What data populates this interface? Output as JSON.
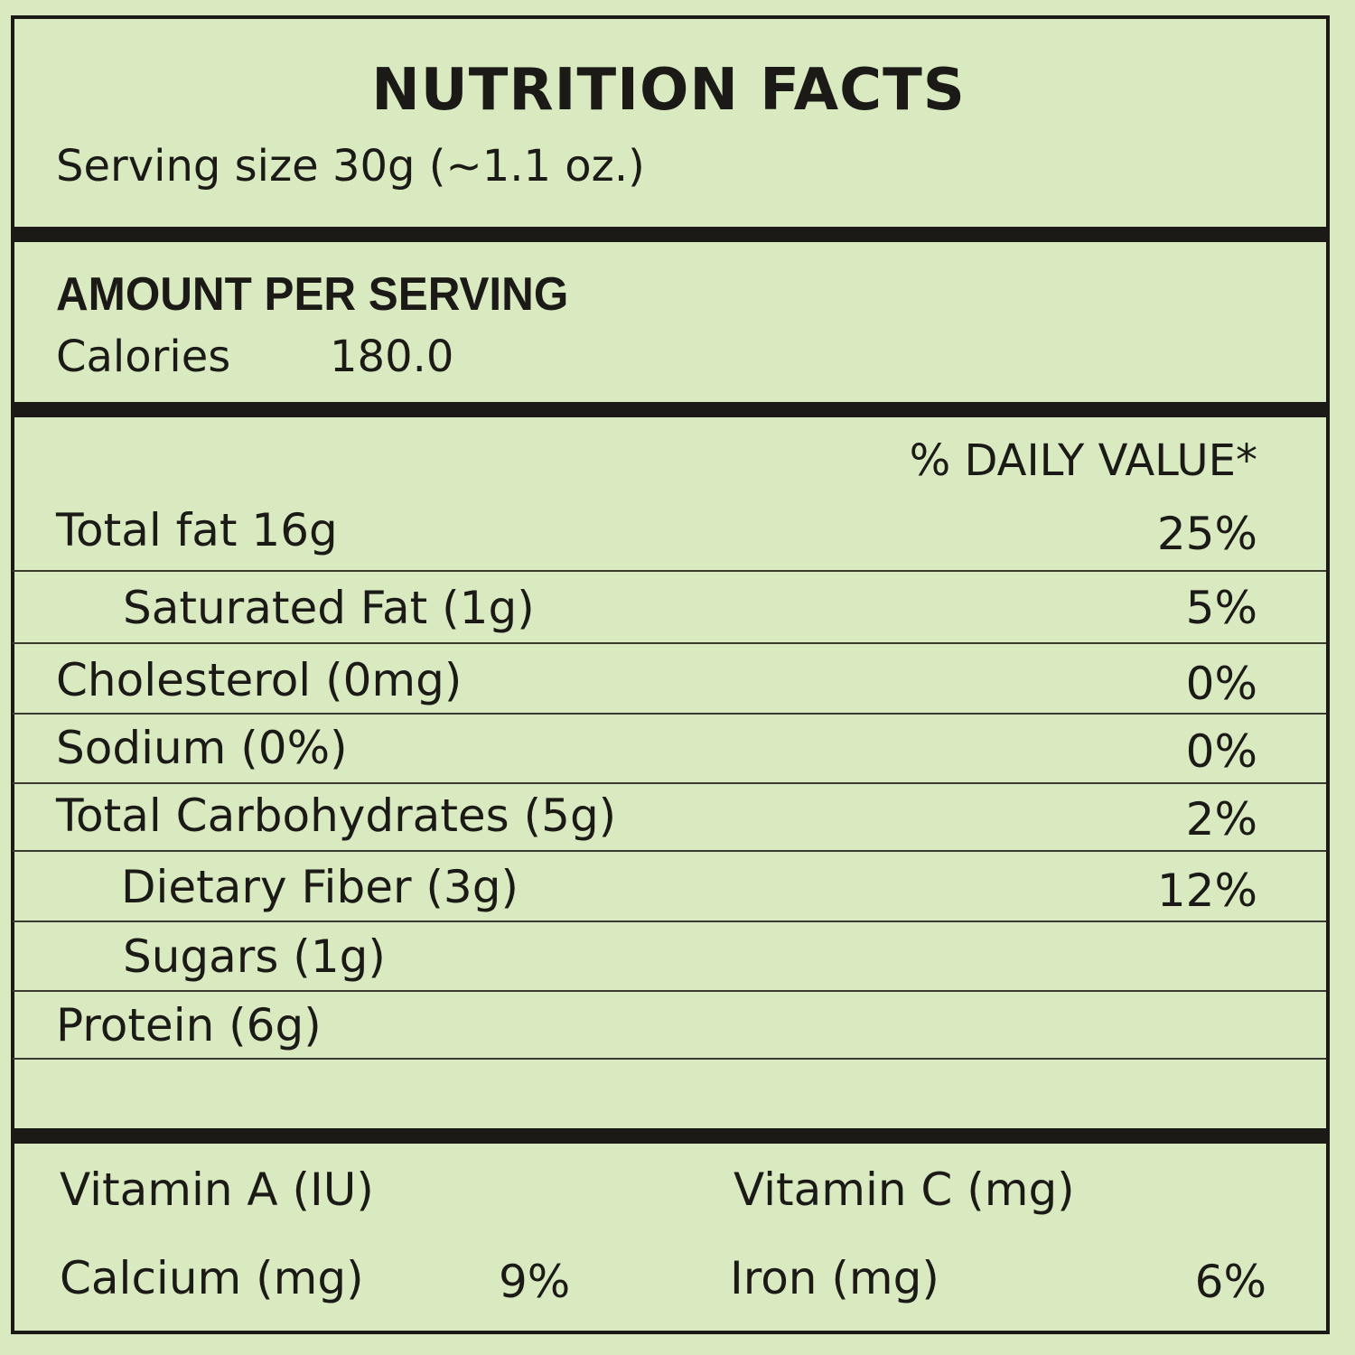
{
  "title": "NUTRITION FACTS",
  "serving_size": "Serving size 30g (~1.1 oz.)",
  "amount_per_serving": "AMOUNT PER SERVING",
  "calories": {
    "label": "Calories",
    "value": "180.0"
  },
  "daily_value_header": "% DAILY VALUE*",
  "nutrients": [
    {
      "label": "Total fat  16g",
      "dv": "25%"
    },
    {
      "label": "Saturated Fat (1g)",
      "dv": "5%"
    },
    {
      "label": "Cholesterol (0mg)",
      "dv": "0%"
    },
    {
      "label": "Sodium (0%)",
      "dv": "0%"
    },
    {
      "label": "Total Carbohydrates (5g)",
      "dv": "2%"
    },
    {
      "label": "Dietary Fiber (3g)",
      "dv": "12%"
    },
    {
      "label": "Sugars (1g)",
      "dv": ""
    },
    {
      "label": "Protein (6g)",
      "dv": ""
    }
  ],
  "vitamins": [
    {
      "label": "Vitamin A (IU)",
      "dv": ""
    },
    {
      "label": "Vitamin C (mg)",
      "dv": ""
    },
    {
      "label": "Calcium (mg)",
      "dv": "9%"
    },
    {
      "label": "Iron (mg)",
      "dv": "6%"
    }
  ],
  "colors": {
    "background": "#d9eac1",
    "ink": "#1c1a17"
  }
}
